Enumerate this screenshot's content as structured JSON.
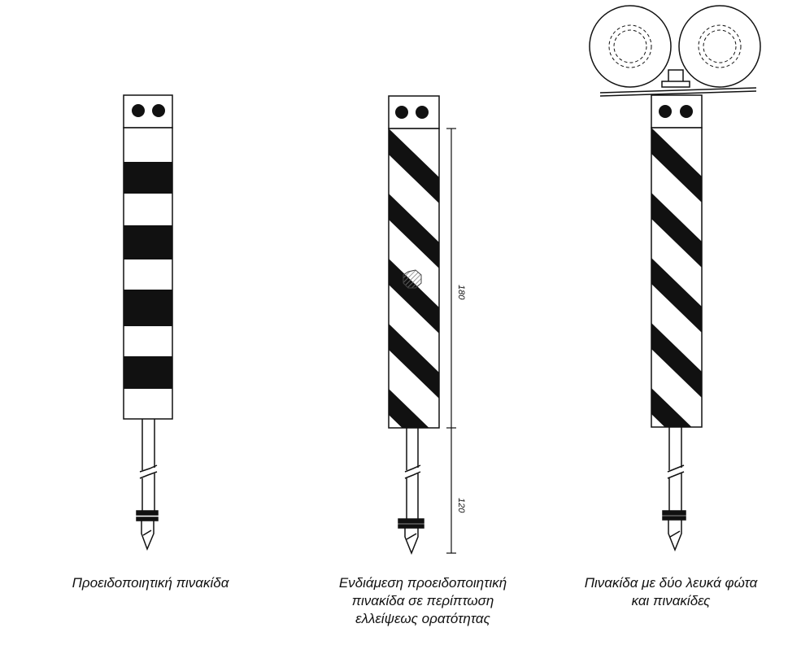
{
  "figures": [
    {
      "id": "warning-sign",
      "caption_lines": [
        "Προειδοποιητική  πινακίδα"
      ],
      "pattern": "horizontal-bands",
      "lamps": 2
    },
    {
      "id": "intermediate-warning-sign",
      "caption_lines": [
        "Ενδιάμεση προειδοποιητική",
        "πινακίδα σε περίπτωση",
        "ελλείψεως ορατότητας"
      ],
      "pattern": "diagonal-stripes",
      "lamps": 2,
      "dimensions": [
        "180",
        "120"
      ]
    },
    {
      "id": "sign-with-two-white-lights",
      "caption_lines": [
        "Πινακίδα με δύο λευκά φώτα",
        "και πινακίδες"
      ],
      "pattern": "diagonal-stripes",
      "lamps": 2,
      "top_discs": 2
    }
  ],
  "colors": {
    "ink": "#111111",
    "paper": "#ffffff",
    "hatch": "#888888"
  }
}
